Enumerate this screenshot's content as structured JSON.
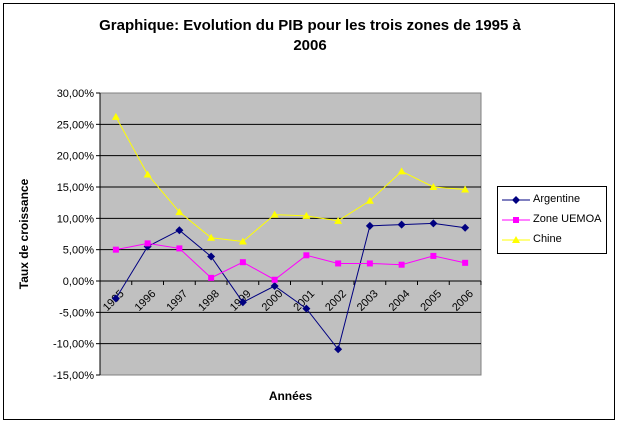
{
  "chart_data": {
    "type": "line",
    "title_lines": [
      "Graphique: Evolution du PIB pour les trois zones de 1995 à",
      "2006"
    ],
    "xlabel": "Années",
    "ylabel": "Taux de croissance",
    "categories": [
      "1995",
      "1996",
      "1997",
      "1998",
      "1999",
      "2000",
      "2001",
      "2002",
      "2003",
      "2004",
      "2005",
      "2006"
    ],
    "ylim": [
      -0.15,
      0.3
    ],
    "yticks": [
      -0.15,
      -0.1,
      -0.05,
      0.0,
      0.05,
      0.1,
      0.15,
      0.2,
      0.25,
      0.3
    ],
    "ytick_labels": [
      "-15,00%",
      "-10,00%",
      "-5,00%",
      "0,00%",
      "5,00%",
      "10,00%",
      "15,00%",
      "20,00%",
      "25,00%",
      "30,00%"
    ],
    "grid": true,
    "legend_position": "right",
    "series": [
      {
        "name": "Argentine",
        "color": "#000080",
        "marker": "diamond",
        "values": [
          -0.028,
          0.055,
          0.081,
          0.039,
          -0.034,
          -0.008,
          -0.044,
          -0.109,
          0.088,
          0.09,
          0.092,
          0.085
        ]
      },
      {
        "name": "Zone UEMOA",
        "color": "#ff00ff",
        "marker": "square",
        "values": [
          0.05,
          0.06,
          0.052,
          0.005,
          0.03,
          0.002,
          0.041,
          0.028,
          0.028,
          0.026,
          0.04,
          0.029
        ]
      },
      {
        "name": "Chine",
        "color": "#ffff00",
        "marker": "triangle",
        "values": [
          0.262,
          0.17,
          0.11,
          0.069,
          0.063,
          0.106,
          0.104,
          0.096,
          0.128,
          0.175,
          0.15,
          0.146
        ]
      }
    ]
  }
}
